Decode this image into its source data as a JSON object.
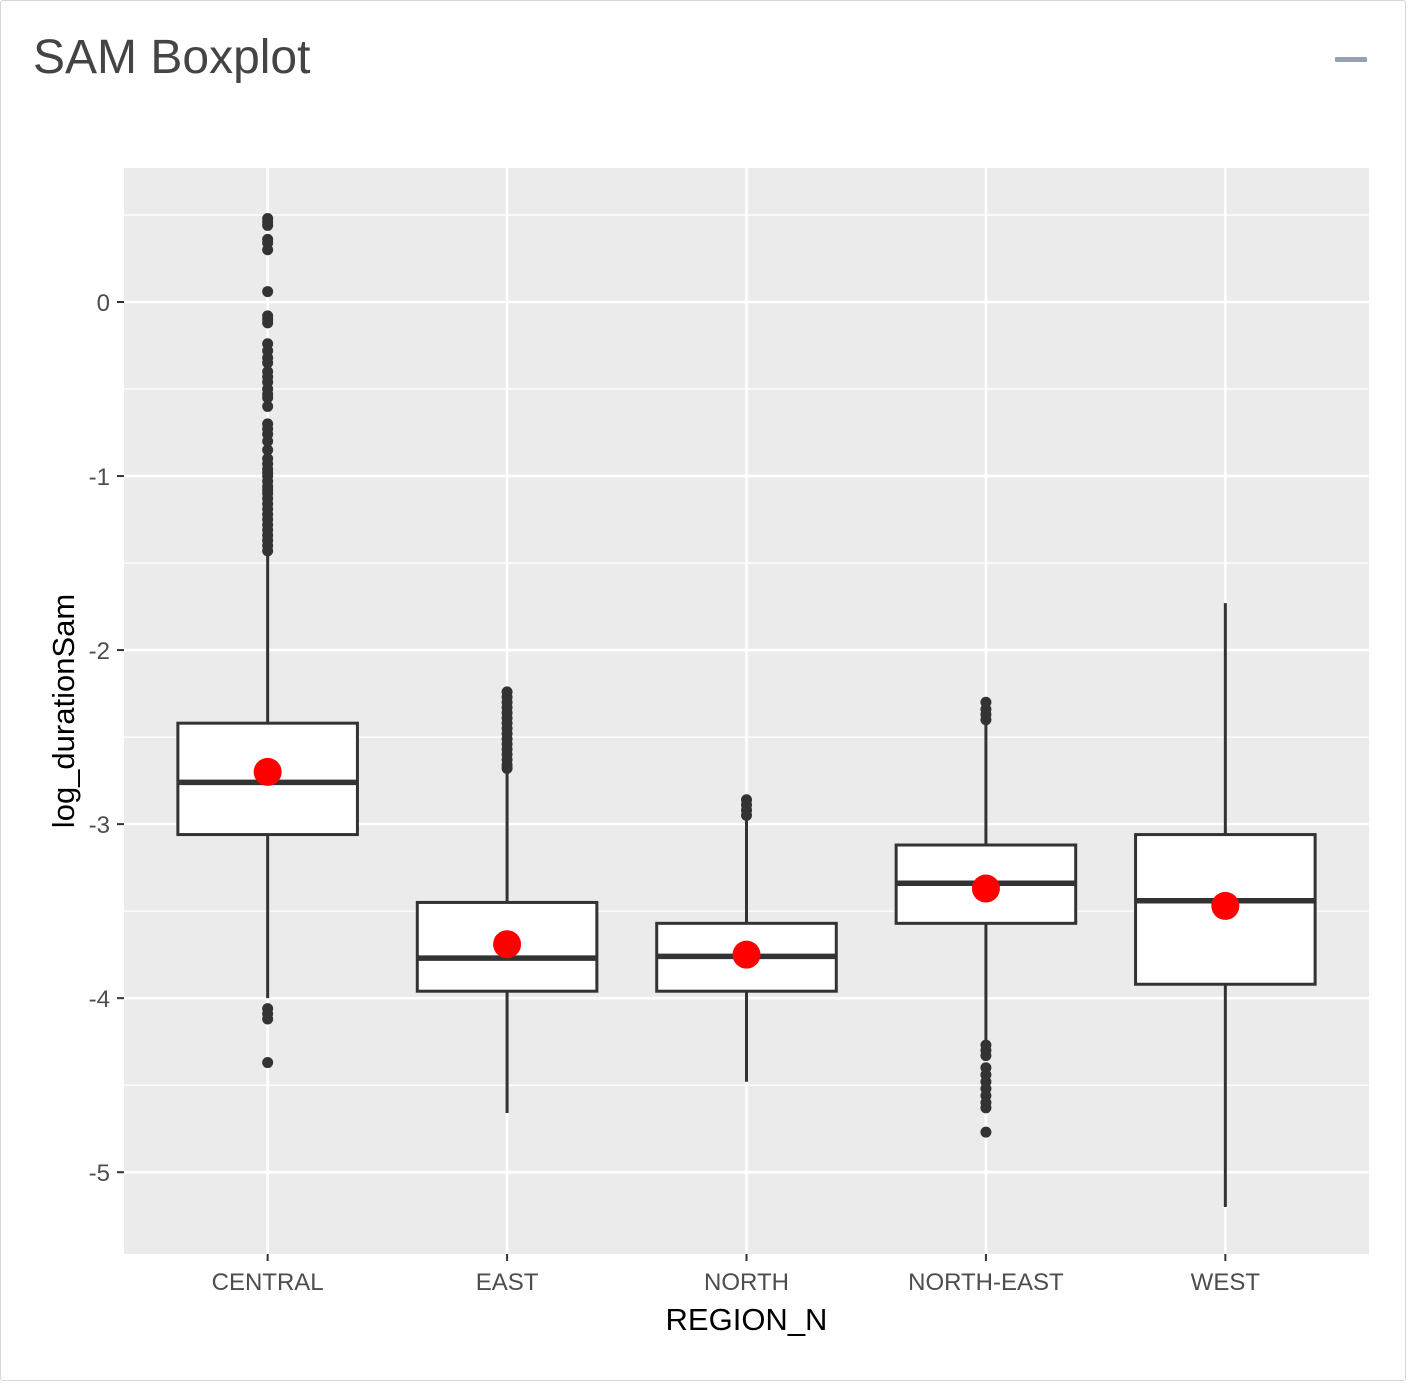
{
  "panel": {
    "title": "SAM Boxplot",
    "collapse_icon": "minus-icon"
  },
  "colors": {
    "panel_bg": "#EBEBEB",
    "grid": "#FFFFFF",
    "box_fill": "#FFFFFF",
    "box_stroke": "#333333",
    "outlier": "#333333",
    "mean_point": "#FF0000"
  },
  "chart_data": {
    "type": "boxplot",
    "xlabel": "REGION_N",
    "ylabel": "log_durationSam",
    "ylim": [
      -5.47,
      0.77
    ],
    "yticks": [
      0,
      -1,
      -2,
      -3,
      -4,
      -5
    ],
    "grid": true,
    "categories": [
      "CENTRAL",
      "EAST",
      "NORTH",
      "NORTH-EAST",
      "WEST"
    ],
    "boxes": [
      {
        "category": "CENTRAL",
        "whisker_low": -4.0,
        "q1": -3.06,
        "median": -2.76,
        "q3": -2.42,
        "whisker_high": -1.45,
        "mean": -2.7,
        "outliers_high": [
          0.48,
          0.46,
          0.44,
          0.36,
          0.34,
          0.3,
          0.06,
          -0.08,
          -0.1,
          -0.12,
          -0.24,
          -0.28,
          -0.32,
          -0.35,
          -0.4,
          -0.43,
          -0.46,
          -0.5,
          -0.53,
          -0.55,
          -0.6,
          -0.7,
          -0.73,
          -0.76,
          -0.8,
          -0.85,
          -0.9,
          -0.93,
          -0.96,
          -0.98,
          -1.0,
          -1.03,
          -1.06,
          -1.08,
          -1.1,
          -1.13,
          -1.16,
          -1.19,
          -1.22,
          -1.25,
          -1.28,
          -1.31,
          -1.34,
          -1.37,
          -1.4,
          -1.43
        ],
        "outliers_low": [
          -4.06,
          -4.09,
          -4.12,
          -4.37
        ]
      },
      {
        "category": "EAST",
        "whisker_low": -4.66,
        "q1": -3.96,
        "median": -3.77,
        "q3": -3.45,
        "whisker_high": -2.7,
        "mean": -3.69,
        "outliers_high": [
          -2.24,
          -2.27,
          -2.3,
          -2.33,
          -2.36,
          -2.39,
          -2.42,
          -2.45,
          -2.48,
          -2.51,
          -2.54,
          -2.57,
          -2.6,
          -2.63,
          -2.66,
          -2.68
        ],
        "outliers_low": []
      },
      {
        "category": "NORTH",
        "whisker_low": -4.48,
        "q1": -3.96,
        "median": -3.76,
        "q3": -3.57,
        "whisker_high": -2.97,
        "mean": -3.75,
        "outliers_high": [
          -2.86,
          -2.89,
          -2.92,
          -2.95
        ],
        "outliers_low": []
      },
      {
        "category": "NORTH-EAST",
        "whisker_low": -4.25,
        "q1": -3.57,
        "median": -3.34,
        "q3": -3.12,
        "whisker_high": -2.42,
        "mean": -3.37,
        "outliers_high": [
          -2.3,
          -2.34,
          -2.37,
          -2.4
        ],
        "outliers_low": [
          -4.27,
          -4.3,
          -4.33,
          -4.4,
          -4.44,
          -4.48,
          -4.52,
          -4.56,
          -4.6,
          -4.63,
          -4.77
        ]
      },
      {
        "category": "WEST",
        "whisker_low": -5.2,
        "q1": -3.92,
        "median": -3.44,
        "q3": -3.06,
        "whisker_high": -1.73,
        "mean": -3.47,
        "outliers_high": [],
        "outliers_low": []
      }
    ]
  }
}
